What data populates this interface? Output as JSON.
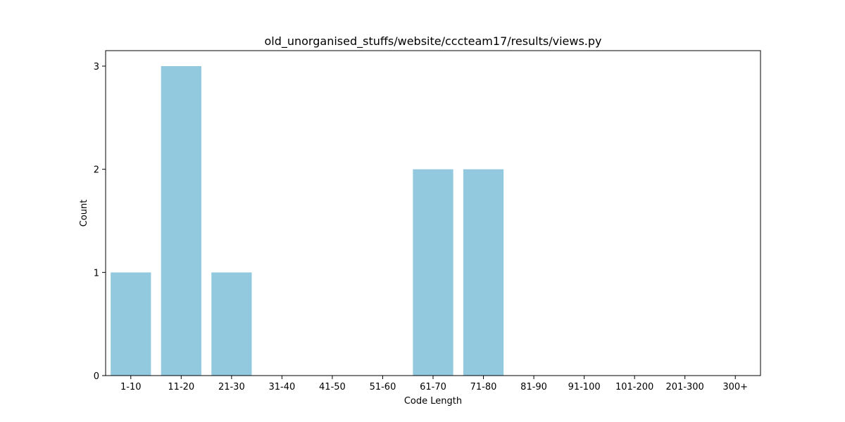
{
  "chart_data": {
    "type": "bar",
    "title": "old_unorganised_stuffs/website/cccteam17/results/views.py",
    "xlabel": "Code Length",
    "ylabel": "Count",
    "categories": [
      "1-10",
      "11-20",
      "21-30",
      "31-40",
      "41-50",
      "51-60",
      "61-70",
      "71-80",
      "81-90",
      "91-100",
      "101-200",
      "201-300",
      "300+"
    ],
    "values": [
      1,
      3,
      1,
      0,
      0,
      0,
      2,
      2,
      0,
      0,
      0,
      0,
      0
    ],
    "yticks": [
      0,
      1,
      2,
      3
    ],
    "ylim": [
      0,
      3.15
    ],
    "bar_color": "#92c9df",
    "grid": false,
    "legend": "none"
  }
}
